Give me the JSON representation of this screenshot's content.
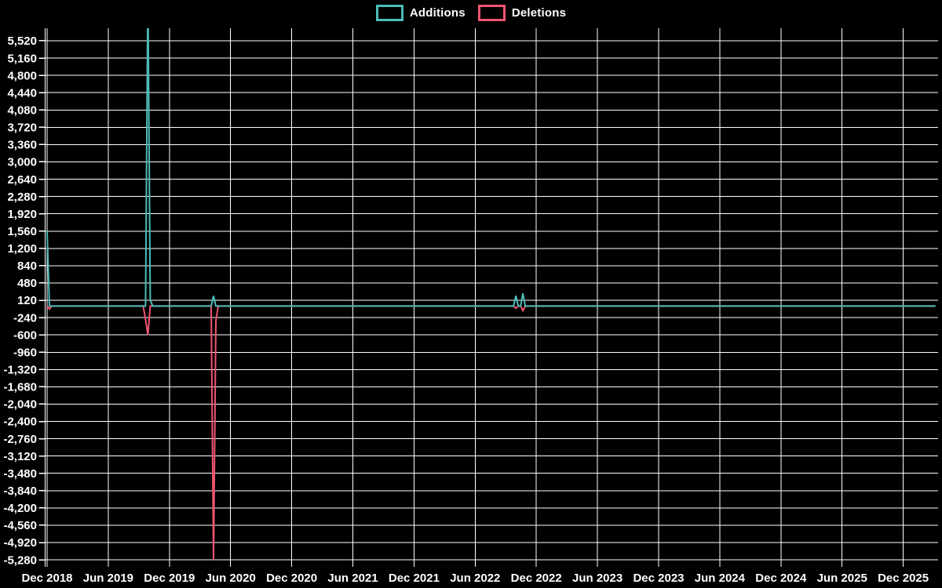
{
  "chart_data": {
    "type": "line",
    "title": "",
    "sampling": "weekly",
    "legend_position": "top-center",
    "background_color": "#000000",
    "grid_color": "#ffffff",
    "axis_color": "#ffffff",
    "text_color": "#ffffff",
    "baseline_value": 0,
    "series": [
      {
        "name": "Additions",
        "color": "#4cbcb8",
        "baseline_value": 0,
        "events": [
          {
            "date": "2018-12-01",
            "value": 1560
          },
          {
            "date": "2019-09-29",
            "value": 6600
          },
          {
            "date": "2019-10-06",
            "value": 130
          },
          {
            "date": "2020-04-12",
            "value": 210
          },
          {
            "date": "2022-10-02",
            "value": 215
          },
          {
            "date": "2022-10-23",
            "value": 265
          }
        ]
      },
      {
        "name": "Deletions",
        "color": "#ef5571",
        "baseline_value": 0,
        "events": [
          {
            "date": "2018-12-08",
            "value": -60
          },
          {
            "date": "2019-09-22",
            "value": -280
          },
          {
            "date": "2019-09-29",
            "value": -600
          },
          {
            "date": "2020-04-12",
            "value": -5280
          },
          {
            "date": "2020-04-19",
            "value": -310
          },
          {
            "date": "2022-10-02",
            "value": -45
          },
          {
            "date": "2022-10-23",
            "value": -95
          }
        ]
      }
    ],
    "x_axis": {
      "tick_interval": "6 months",
      "range_start": "2018-12-01",
      "range_end": "2026-03-08",
      "tick_labels": [
        "Dec 2018",
        "Jun 2019",
        "Dec 2019",
        "Jun 2020",
        "Dec 2020",
        "Jun 2021",
        "Dec 2021",
        "Jun 2022",
        "Dec 2022",
        "Jun 2023",
        "Dec 2023",
        "Jun 2024",
        "Dec 2024",
        "Jun 2025",
        "Dec 2025"
      ]
    },
    "y_axis": {
      "max": 5520,
      "min": -5280,
      "step": 360,
      "tick_labels": [
        "5,520",
        "5,160",
        "4,800",
        "4,440",
        "4,080",
        "3,720",
        "3,360",
        "3,000",
        "2,640",
        "2,280",
        "1,920",
        "1,560",
        "1,200",
        "840",
        "480",
        "120",
        "-240",
        "-600",
        "-960",
        "-1,320",
        "-1,680",
        "-2,040",
        "-2,400",
        "-2,760",
        "-3,120",
        "-3,480",
        "-3,840",
        "-4,200",
        "-4,560",
        "-4,920",
        "-5,280"
      ]
    }
  }
}
